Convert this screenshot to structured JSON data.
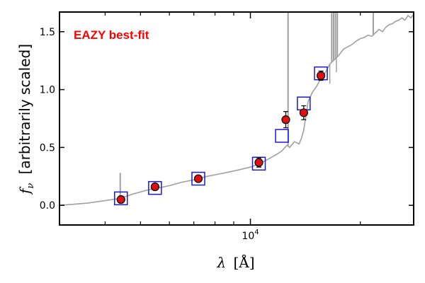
{
  "chart_data": {
    "type": "scatter",
    "annotation": "EAZY best-fit",
    "xlabel_symbol": "λ",
    "xlabel_unit": "[Å]",
    "ylabel_symbol": "f",
    "ylabel_sub": "ν",
    "ylabel_text": "[arbitrarily scaled]",
    "x_log_scale": true,
    "xlim": [
      3000,
      28000
    ],
    "ylim": [
      -0.17,
      1.67
    ],
    "y_ticks": [
      0.0,
      0.5,
      1.0,
      1.5
    ],
    "y_tick_labels": [
      "0.0",
      "0.5",
      "1.0",
      "1.5"
    ],
    "x_major_tick_label": "10^4",
    "x_major_tick_label_base": "10",
    "x_major_tick_label_exp": "4",
    "x_major_tick_value": 10000,
    "x_minor_ticks": [
      4000,
      5000,
      6000,
      7000,
      8000,
      9000,
      20000
    ],
    "colors": {
      "model": "#a0a0a0",
      "model_phot": "#1a1ad6",
      "obs_fill": "#e01010",
      "annotation": "#ff0000"
    },
    "observed": [
      {
        "x": 4420,
        "y": 0.05,
        "err": 0.02
      },
      {
        "x": 5480,
        "y": 0.16,
        "err": 0.02
      },
      {
        "x": 7200,
        "y": 0.23,
        "err": 0.02
      },
      {
        "x": 10550,
        "y": 0.37,
        "err": 0.04
      },
      {
        "x": 12500,
        "y": 0.74,
        "err": 0.07
      },
      {
        "x": 14000,
        "y": 0.8,
        "err": 0.06
      },
      {
        "x": 15600,
        "y": 1.12,
        "err": 0.04
      }
    ],
    "model_photometry": [
      {
        "x": 4420,
        "y": 0.06
      },
      {
        "x": 5480,
        "y": 0.15
      },
      {
        "x": 7200,
        "y": 0.23
      },
      {
        "x": 10550,
        "y": 0.36
      },
      {
        "x": 12200,
        "y": 0.6
      },
      {
        "x": 14000,
        "y": 0.88
      },
      {
        "x": 15600,
        "y": 1.14
      }
    ],
    "model_spectrum": [
      [
        3000,
        0.0
      ],
      [
        3300,
        0.01
      ],
      [
        3600,
        0.02
      ],
      [
        4000,
        0.04
      ],
      [
        4400,
        0.06
      ],
      [
        4800,
        0.1
      ],
      [
        5200,
        0.13
      ],
      [
        5600,
        0.15
      ],
      [
        6000,
        0.17
      ],
      [
        6500,
        0.2
      ],
      [
        7000,
        0.22
      ],
      [
        7600,
        0.25
      ],
      [
        8200,
        0.27
      ],
      [
        8800,
        0.29
      ],
      [
        9400,
        0.31
      ],
      [
        10000,
        0.33
      ],
      [
        10600,
        0.36
      ],
      [
        11200,
        0.4
      ],
      [
        11800,
        0.44
      ],
      [
        12200,
        0.47
      ],
      [
        12600,
        0.52
      ],
      [
        12800,
        0.5
      ],
      [
        13200,
        0.55
      ],
      [
        13600,
        0.53
      ],
      [
        13800,
        0.58
      ],
      [
        14000,
        0.65
      ],
      [
        14400,
        0.9
      ],
      [
        14800,
        0.98
      ],
      [
        15200,
        1.03
      ],
      [
        15600,
        1.1
      ],
      [
        16000,
        1.14
      ],
      [
        16500,
        1.22
      ],
      [
        17000,
        1.26
      ],
      [
        17500,
        1.3
      ],
      [
        18000,
        1.35
      ],
      [
        18500,
        1.37
      ],
      [
        19000,
        1.39
      ],
      [
        19500,
        1.42
      ],
      [
        20000,
        1.44
      ],
      [
        20500,
        1.45
      ],
      [
        21000,
        1.47
      ],
      [
        21500,
        1.46
      ],
      [
        22000,
        1.49
      ],
      [
        22500,
        1.52
      ],
      [
        23000,
        1.5
      ],
      [
        23500,
        1.54
      ],
      [
        24000,
        1.56
      ],
      [
        24500,
        1.57
      ],
      [
        25000,
        1.59
      ],
      [
        25500,
        1.6
      ],
      [
        26000,
        1.62
      ],
      [
        26500,
        1.6
      ],
      [
        27000,
        1.64
      ],
      [
        27500,
        1.62
      ],
      [
        28000,
        1.65
      ]
    ],
    "emission_lines": [
      {
        "x": 4400,
        "base": 0.06,
        "peak": 0.28
      },
      {
        "x": 5480,
        "base": 0.15,
        "peak": 0.2
      },
      {
        "x": 12680,
        "base": 0.51,
        "peak": 1.67
      },
      {
        "x": 16700,
        "base": 1.24,
        "peak": 1.67
      },
      {
        "x": 16900,
        "base": 1.25,
        "peak": 1.67
      },
      {
        "x": 17100,
        "base": 1.26,
        "peak": 1.67
      },
      {
        "x": 17300,
        "base": 1.28,
        "peak": 1.67
      },
      {
        "x": 21700,
        "base": 1.47,
        "peak": 1.67
      }
    ],
    "absorption_lines": [
      {
        "x": 16500,
        "base": 1.22,
        "low": 1.05
      },
      {
        "x": 17200,
        "base": 1.27,
        "low": 1.15
      }
    ]
  }
}
